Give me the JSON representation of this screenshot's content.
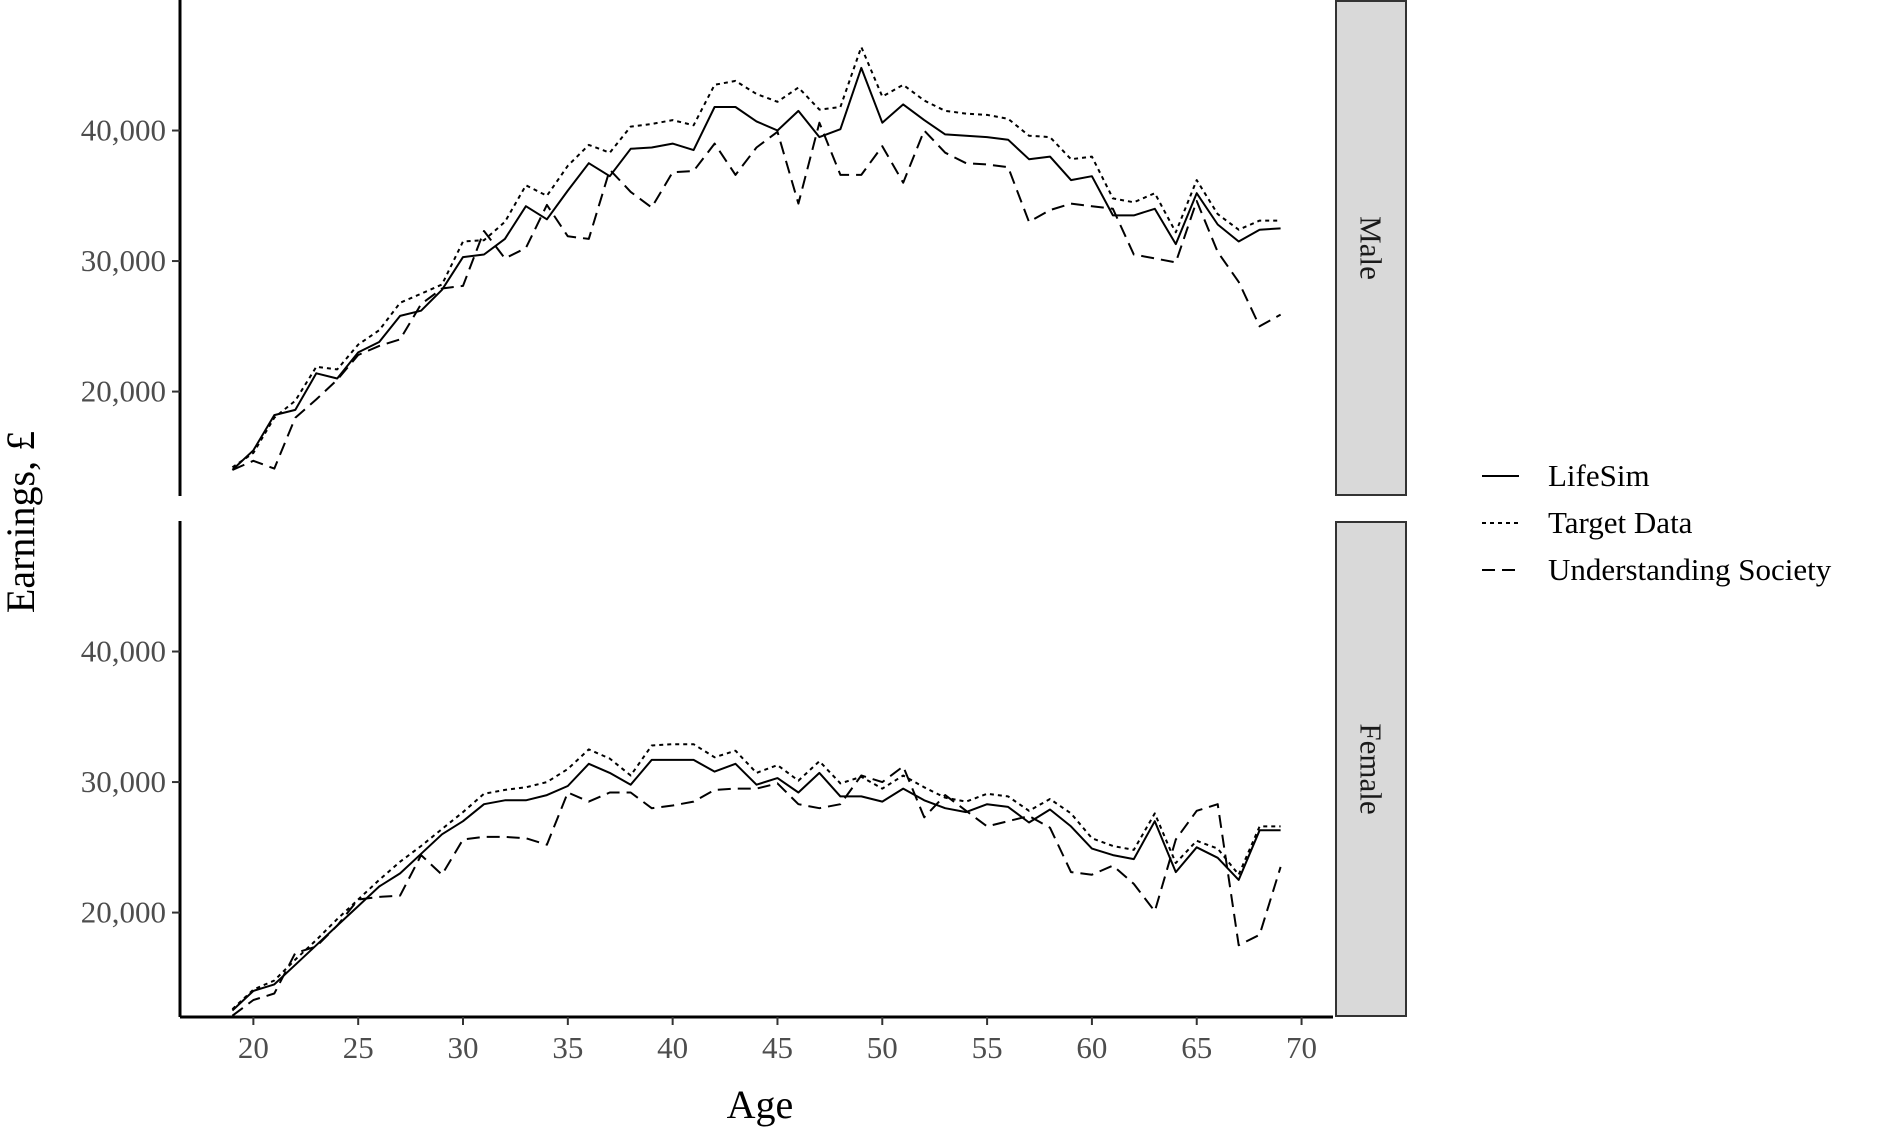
{
  "chart_data": {
    "type": "line",
    "xlabel": "Age",
    "ylabel": "Earnings, £",
    "xlim": [
      16.5,
      71.5
    ],
    "ylim": [
      12000,
      50000
    ],
    "x_ticks": [
      20,
      25,
      30,
      35,
      40,
      45,
      50,
      55,
      60,
      65,
      70
    ],
    "x_tick_labels": [
      "20",
      "25",
      "30",
      "35",
      "40",
      "45",
      "50",
      "55",
      "60",
      "65",
      "70"
    ],
    "y_ticks": [
      20000,
      30000,
      40000
    ],
    "y_tick_labels": [
      "20,000",
      "30,000",
      "40,000"
    ],
    "grid": false,
    "legend_position": "right",
    "x": [
      19,
      20,
      21,
      22,
      23,
      24,
      25,
      26,
      27,
      28,
      29,
      30,
      31,
      32,
      33,
      34,
      35,
      36,
      37,
      38,
      39,
      40,
      41,
      42,
      43,
      44,
      45,
      46,
      47,
      48,
      49,
      50,
      51,
      52,
      53,
      54,
      55,
      56,
      57,
      58,
      59,
      60,
      61,
      62,
      63,
      64,
      65,
      66,
      67,
      68,
      69
    ],
    "series_styles": [
      {
        "name": "LifeSim",
        "dash": "solid"
      },
      {
        "name": "Target Data",
        "dash": "dotted"
      },
      {
        "name": "Understanding Society",
        "dash": "dashed"
      }
    ],
    "panels": [
      {
        "label": "Male",
        "series": [
          {
            "name": "LifeSim",
            "values": [
              14000,
              15500,
              18200,
              18600,
              21400,
              21000,
              23000,
              23800,
              25800,
              26200,
              27800,
              30300,
              30500,
              31700,
              34200,
              33200,
              35400,
              37500,
              36500,
              38600,
              38700,
              39000,
              38500,
              41800,
              41800,
              40700,
              40000,
              41500,
              39500,
              40100,
              44800,
              40600,
              42000,
              40800,
              39700,
              39600,
              39500,
              39300,
              37800,
              38000,
              36200,
              36500,
              33500,
              33500,
              34000,
              31300,
              35200,
              32800,
              31500,
              32400,
              32500
            ]
          },
          {
            "name": "Target Data",
            "values": [
              14200,
              15300,
              18000,
              19300,
              21900,
              21700,
              23600,
              24700,
              26800,
              27500,
              28200,
              31500,
              31600,
              33000,
              35800,
              35000,
              37300,
              38900,
              38300,
              40300,
              40500,
              40800,
              40400,
              43500,
              43800,
              42800,
              42200,
              43300,
              41600,
              41800,
              46400,
              42600,
              43500,
              42300,
              41500,
              41300,
              41200,
              40900,
              39600,
              39500,
              37800,
              38000,
              34800,
              34500,
              35200,
              32200,
              36200,
              33600,
              32400,
              33100,
              33100
            ]
          },
          {
            "name": "Understanding Society",
            "values": [
              14000,
              14700,
              14100,
              18000,
              19400,
              20900,
              22800,
              23500,
              24000,
              26700,
              27900,
              28100,
              32300,
              30200,
              31000,
              34300,
              31900,
              31700,
              37000,
              35300,
              34100,
              36800,
              36900,
              39000,
              36600,
              38700,
              39900,
              34400,
              40600,
              36600,
              36600,
              38800,
              36000,
              40000,
              38300,
              37500,
              37400,
              37200,
              33000,
              33900,
              34400,
              34200,
              34000,
              30500,
              30200,
              29900,
              34600,
              30700,
              28400,
              25000,
              25900
            ]
          }
        ]
      },
      {
        "label": "Female",
        "series": [
          {
            "name": "LifeSim",
            "values": [
              12500,
              14000,
              14500,
              16000,
              17500,
              19000,
              20500,
              22000,
              23000,
              24500,
              26000,
              27000,
              28300,
              28600,
              28600,
              29000,
              29700,
              31400,
              30700,
              29800,
              31700,
              31700,
              31700,
              30800,
              31400,
              29800,
              30300,
              29200,
              30700,
              28900,
              28900,
              28500,
              29500,
              28600,
              28000,
              27700,
              28300,
              28100,
              26900,
              27900,
              26600,
              24900,
              24400,
              24100,
              27000,
              23100,
              25000,
              24200,
              22500,
              26300,
              26300
            ]
          },
          {
            "name": "Target Data",
            "values": [
              12600,
              14100,
              14800,
              16400,
              17900,
              19500,
              21000,
              22500,
              23900,
              25100,
              26400,
              27700,
              29100,
              29400,
              29600,
              30000,
              31000,
              32500,
              31800,
              30500,
              32800,
              32900,
              32900,
              31900,
              32400,
              30700,
              31300,
              30100,
              31600,
              29900,
              30400,
              29500,
              30500,
              29600,
              28800,
              28500,
              29100,
              28900,
              27800,
              28700,
              27600,
              25700,
              25100,
              24800,
              27600,
              23800,
              25500,
              24900,
              22900,
              26600,
              26600
            ]
          },
          {
            "name": "Understanding Society",
            "values": [
              12100,
              13300,
              13800,
              16900,
              17400,
              19000,
              21000,
              21200,
              21300,
              24400,
              22900,
              25600,
              25800,
              25800,
              25700,
              25200,
              29200,
              28500,
              29200,
              29200,
              28000,
              28200,
              28500,
              29400,
              29500,
              29500,
              29900,
              28300,
              28000,
              28300,
              30500,
              30000,
              31200,
              27300,
              29000,
              27800,
              26600,
              27000,
              27400,
              26500,
              23100,
              22900,
              23600,
              22200,
              20100,
              25600,
              27800,
              28300,
              17500,
              18300,
              23500
            ]
          }
        ]
      }
    ]
  }
}
